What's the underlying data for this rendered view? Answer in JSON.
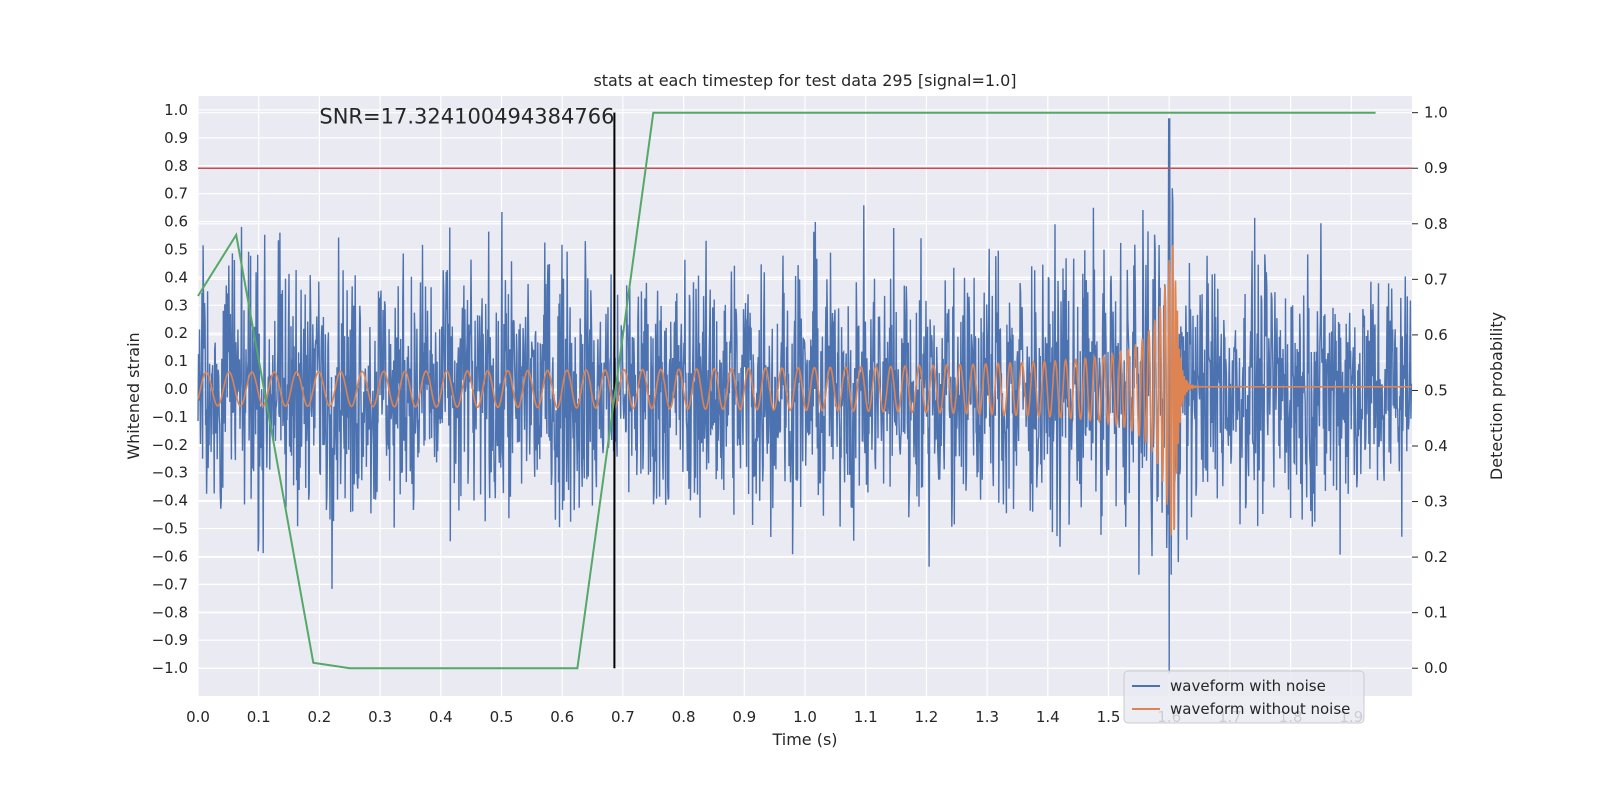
{
  "chart_data": {
    "type": "line",
    "title": "stats at each timestep for test data 295 [signal=1.0]",
    "xlabel": "Time (s)",
    "ylabel_left": "Whitened strain",
    "ylabel_right": "Detection probability",
    "xlim": [
      0.0,
      2.0
    ],
    "ylim_left": [
      -1.1,
      1.05
    ],
    "ylim_right": [
      -0.05,
      1.03
    ],
    "x_ticks": [
      "0.0",
      "0.1",
      "0.2",
      "0.3",
      "0.4",
      "0.5",
      "0.6",
      "0.7",
      "0.8",
      "0.9",
      "1.0",
      "1.1",
      "1.2",
      "1.3",
      "1.4",
      "1.5",
      "1.6",
      "1.7",
      "1.8",
      "1.9"
    ],
    "y_left_ticks": [
      "1.0",
      "0.9",
      "0.8",
      "0.7",
      "0.6",
      "0.5",
      "0.4",
      "0.3",
      "0.2",
      "0.1",
      "0.0",
      "−0.1",
      "−0.2",
      "−0.3",
      "−0.4",
      "−0.5",
      "−0.6",
      "−0.7",
      "−0.8",
      "−0.9",
      "−1.0"
    ],
    "y_right_ticks": [
      "1.0",
      "0.9",
      "0.8",
      "0.7",
      "0.6",
      "0.5",
      "0.4",
      "0.3",
      "0.2",
      "0.1",
      "0.0"
    ],
    "grid": true,
    "annotation": "SNR=17.324100494384766",
    "marker_x": 0.686,
    "threshold": 0.9,
    "series": [
      {
        "name": "waveform with noise",
        "color": "#4c72b0",
        "axis": "left",
        "kind": "noise",
        "amplitude": 0.22,
        "peak_t": 1.6,
        "peak_range": [
          -1.02,
          0.97
        ]
      },
      {
        "name": "waveform without noise",
        "color": "#dd8452",
        "axis": "left",
        "kind": "chirp",
        "merger_t": 1.61,
        "peak": 0.55,
        "base_amp": 0.06
      },
      {
        "name": "detection probability",
        "color": "#55a868",
        "axis": "right",
        "x": [
          0.0,
          0.063,
          0.19,
          0.25,
          0.625,
          0.75,
          1.94
        ],
        "y": [
          0.67,
          0.78,
          0.01,
          0.0,
          0.0,
          1.0,
          1.0
        ]
      }
    ],
    "legend": {
      "position": "lower-right",
      "entries": [
        "waveform with noise",
        "waveform without noise"
      ]
    },
    "colors": {
      "background": "#eaeaf2",
      "grid": "#ffffff",
      "threshold": "#c44e52",
      "marker": "#000000",
      "noise": "#4c72b0",
      "chirp": "#dd8452",
      "prob": "#55a868"
    }
  }
}
